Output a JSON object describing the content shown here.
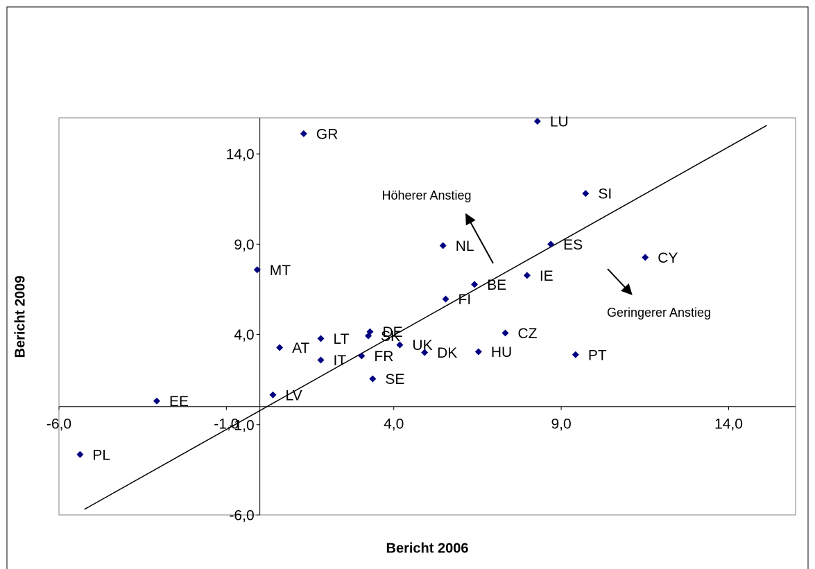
{
  "chart_data": {
    "type": "scatter",
    "x_label": "Bericht 2006",
    "y_label": "Bericht 2009",
    "labels": [
      "GR",
      "LU",
      "SI",
      "NL",
      "ES",
      "CY",
      "MT",
      "BE",
      "IE",
      "FI",
      "DE",
      "SK",
      "CZ",
      "LT",
      "AT",
      "UK",
      "DK",
      "HU",
      "PT",
      "IT",
      "FR",
      "SE",
      "LV",
      "EE",
      "PL"
    ],
    "x": [
      1.31,
      8.29,
      9.73,
      5.47,
      8.69,
      11.51,
      -0.08,
      6.41,
      7.98,
      5.55,
      3.29,
      3.24,
      7.33,
      1.82,
      0.59,
      4.18,
      4.92,
      6.53,
      9.43,
      1.82,
      3.04,
      3.37,
      0.39,
      -3.08,
      -5.37
    ],
    "values": [
      15.12,
      15.81,
      11.81,
      8.92,
      9.0,
      8.27,
      7.58,
      6.77,
      7.27,
      5.96,
      4.15,
      3.92,
      4.08,
      3.77,
      3.27,
      3.42,
      3.0,
      3.04,
      2.88,
      2.58,
      2.81,
      1.54,
      0.65,
      0.31,
      -2.65
    ],
    "color": "#000080",
    "trendline": {
      "x": [
        -5.24,
        15.14
      ],
      "y": [
        -5.69,
        15.58
      ],
      "color": "#000000"
    },
    "annotations": [
      "Höherer Anstieg",
      "Geringerer Anstieg"
    ],
    "xlim": [
      -6,
      16
    ],
    "ylim": [
      -6,
      16
    ],
    "xticks": [
      {
        "value": -6,
        "label": "-6,0"
      },
      {
        "value": -1,
        "label": "-1,0"
      },
      {
        "value": 4,
        "label": "4,0"
      },
      {
        "value": 9,
        "label": "9,0"
      },
      {
        "value": 14,
        "label": "14,0"
      }
    ],
    "yticks": [
      {
        "value": -6,
        "label": "-6,0"
      },
      {
        "value": -1,
        "label": "-1,0"
      },
      {
        "value": 4,
        "label": "4,0"
      },
      {
        "value": 9,
        "label": "9,0"
      },
      {
        "value": 14,
        "label": "14,0"
      }
    ]
  }
}
